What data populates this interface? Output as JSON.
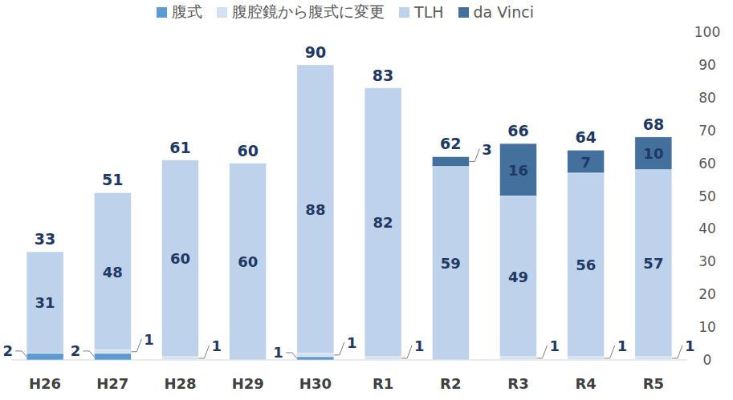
{
  "chart_data": {
    "type": "bar",
    "stacked": true,
    "data_labels": true,
    "grid": false,
    "legend": "top",
    "categories": [
      "H26",
      "H27",
      "H28",
      "H29",
      "H30",
      "R1",
      "R2",
      "R3",
      "R4",
      "R5"
    ],
    "series": [
      {
        "name": "腹式",
        "color": "#5b9bd5",
        "values": [
          2,
          2,
          0,
          0,
          1,
          0,
          0,
          0,
          0,
          0
        ]
      },
      {
        "name": "腹腔鏡から腹式に変更",
        "color": "#d4e1f2",
        "values": [
          0,
          1,
          1,
          0,
          1,
          1,
          0,
          1,
          1,
          1
        ]
      },
      {
        "name": "TLH",
        "color": "#bfd2eb",
        "values": [
          31,
          48,
          60,
          60,
          88,
          82,
          59,
          49,
          56,
          57
        ]
      },
      {
        "name": "da Vinci",
        "color": "#44709d",
        "values": [
          0,
          0,
          0,
          0,
          0,
          0,
          3,
          16,
          7,
          10
        ]
      }
    ],
    "totals": [
      33,
      51,
      61,
      60,
      90,
      83,
      62,
      66,
      64,
      68
    ],
    "ylim": [
      0,
      100
    ],
    "yticks": [
      0,
      10,
      20,
      30,
      40,
      50,
      60,
      70,
      80,
      90,
      100
    ]
  }
}
